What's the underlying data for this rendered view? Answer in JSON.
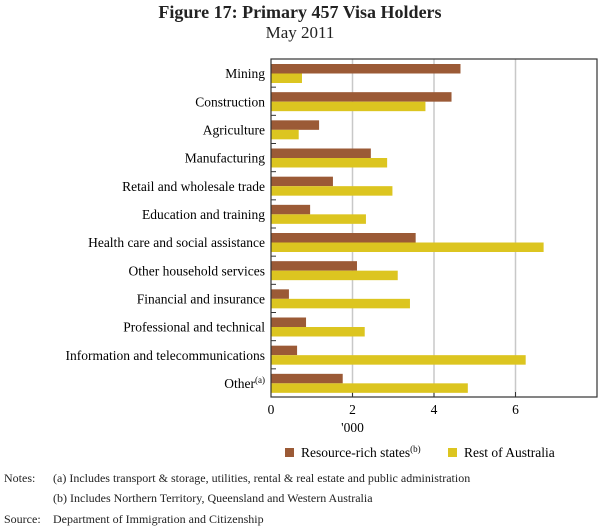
{
  "chart_data": {
    "type": "bar",
    "orientation": "horizontal",
    "title": "Figure 17: Primary 457 Visa Holders",
    "subtitle": "May 2011",
    "xlabel": "'000",
    "xlim": [
      0,
      8
    ],
    "xticks": [
      "0",
      "2",
      "4",
      "6"
    ],
    "grid": true,
    "legend_placement": "bottom",
    "categories": [
      "Mining",
      "Construction",
      "Agriculture",
      "Manufacturing",
      "Retail and wholesale trade",
      "Education and training",
      "Health care and social assistance",
      "Other household services",
      "Financial and insurance",
      "Professional and technical",
      "Information and telecommunications",
      "Other"
    ],
    "category_superscripts": {
      "Other": "(a)"
    },
    "series": [
      {
        "name": "Resource-rich states",
        "superscript": "(b)",
        "color": "#9b5a36",
        "values": [
          4.65,
          4.43,
          1.18,
          2.45,
          1.52,
          0.96,
          3.55,
          2.11,
          0.44,
          0.86,
          0.64,
          1.76
        ]
      },
      {
        "name": "Rest of Australia",
        "color": "#dcc520",
        "values": [
          0.76,
          3.79,
          0.68,
          2.85,
          2.98,
          2.33,
          6.69,
          3.11,
          3.41,
          2.3,
          6.25,
          4.83
        ]
      }
    ]
  },
  "notes": {
    "label": "Notes:",
    "a": "(a) Includes transport & storage, utilities, rental & real estate and public administration",
    "b": "(b) Includes Northern Territory, Queensland and Western Australia"
  },
  "source": {
    "label": "Source:",
    "text": "Department of Immigration and Citizenship"
  }
}
